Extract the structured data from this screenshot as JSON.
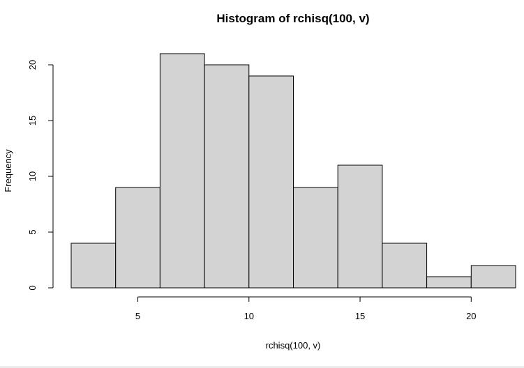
{
  "chart_data": {
    "type": "bar",
    "title": "Histogram of rchisq(100, v)",
    "xlabel": "rchisq(100, v)",
    "ylabel": "Frequency",
    "bins": [
      {
        "x0": 2,
        "x1": 4,
        "count": 4
      },
      {
        "x0": 4,
        "x1": 6,
        "count": 9
      },
      {
        "x0": 6,
        "x1": 8,
        "count": 21
      },
      {
        "x0": 8,
        "x1": 10,
        "count": 20
      },
      {
        "x0": 10,
        "x1": 12,
        "count": 19
      },
      {
        "x0": 12,
        "x1": 14,
        "count": 9
      },
      {
        "x0": 14,
        "x1": 16,
        "count": 11
      },
      {
        "x0": 16,
        "x1": 18,
        "count": 4
      },
      {
        "x0": 18,
        "x1": 20,
        "count": 1
      },
      {
        "x0": 20,
        "x1": 22,
        "count": 2
      }
    ],
    "xlim": [
      2,
      22
    ],
    "ylim": [
      0,
      21
    ],
    "x_ticks": [
      5,
      10,
      15,
      20
    ],
    "y_ticks": [
      0,
      5,
      10,
      15,
      20
    ],
    "bar_fill": "#d3d3d3",
    "bar_stroke": "#000000",
    "grid": false,
    "legend": "none"
  }
}
